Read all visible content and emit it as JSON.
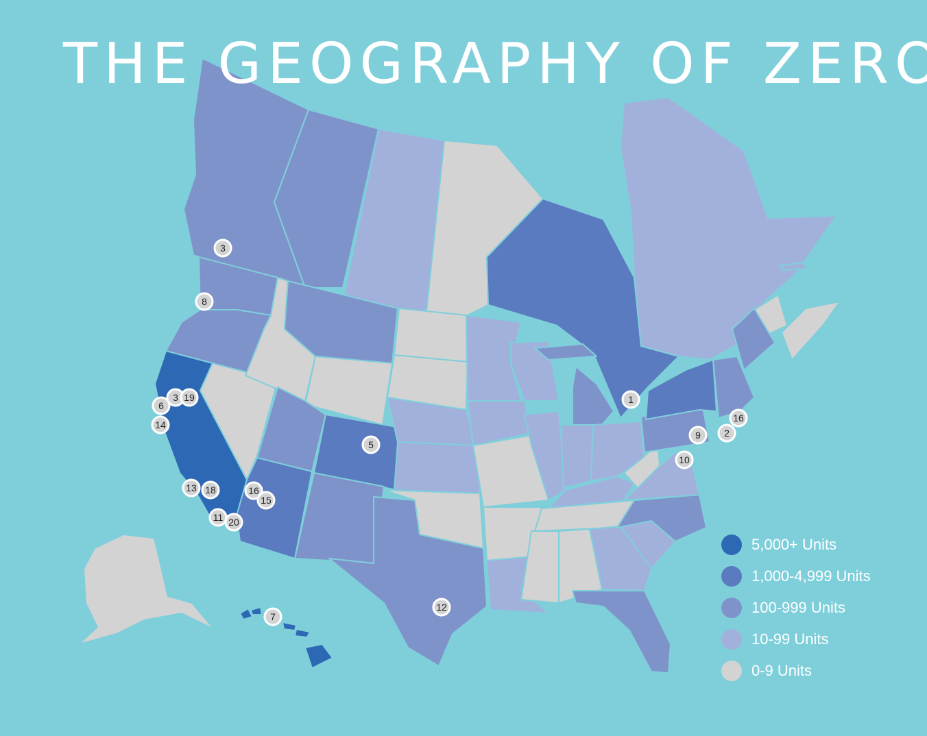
{
  "title": "THE GEOGRAPHY OF ZERO",
  "colors": {
    "background": "#7fcfdb",
    "tier_5000_plus": "#2d68b4",
    "tier_1000_4999": "#5a7bbf",
    "tier_100_999": "#7f93cb",
    "tier_10_99": "#a2b1dc",
    "tier_0_9": "#d3d3d3"
  },
  "legend": [
    {
      "label": "5,000+ Units",
      "color": "#2d68b4"
    },
    {
      "label": "1,000-4,999 Units",
      "color": "#5a7bbf"
    },
    {
      "label": "100-999 Units",
      "color": "#7f93cb"
    },
    {
      "label": "10-99 Units",
      "color": "#a2b1dc"
    },
    {
      "label": "0-9 Units",
      "color": "#d3d3d3"
    }
  ],
  "regions": [
    {
      "name": "british-columbia",
      "tier": 2
    },
    {
      "name": "alberta",
      "tier": 2
    },
    {
      "name": "saskatchewan",
      "tier": 3
    },
    {
      "name": "manitoba",
      "tier": 4
    },
    {
      "name": "ontario",
      "tier": 1
    },
    {
      "name": "quebec",
      "tier": 3
    },
    {
      "name": "new-brunswick",
      "tier": 4
    },
    {
      "name": "nova-scotia",
      "tier": 4
    },
    {
      "name": "washington",
      "tier": 2
    },
    {
      "name": "oregon",
      "tier": 2
    },
    {
      "name": "california",
      "tier": 0
    },
    {
      "name": "nevada",
      "tier": 4
    },
    {
      "name": "idaho",
      "tier": 4
    },
    {
      "name": "montana",
      "tier": 2
    },
    {
      "name": "wyoming",
      "tier": 4
    },
    {
      "name": "utah",
      "tier": 2
    },
    {
      "name": "arizona",
      "tier": 1
    },
    {
      "name": "colorado",
      "tier": 1
    },
    {
      "name": "new-mexico",
      "tier": 2
    },
    {
      "name": "north-dakota",
      "tier": 4
    },
    {
      "name": "south-dakota",
      "tier": 4
    },
    {
      "name": "nebraska",
      "tier": 3
    },
    {
      "name": "kansas",
      "tier": 3
    },
    {
      "name": "oklahoma",
      "tier": 4
    },
    {
      "name": "texas",
      "tier": 2
    },
    {
      "name": "minnesota",
      "tier": 3
    },
    {
      "name": "iowa",
      "tier": 3
    },
    {
      "name": "missouri",
      "tier": 4
    },
    {
      "name": "arkansas",
      "tier": 4
    },
    {
      "name": "louisiana",
      "tier": 3
    },
    {
      "name": "wisconsin",
      "tier": 3
    },
    {
      "name": "illinois",
      "tier": 3
    },
    {
      "name": "michigan",
      "tier": 2
    },
    {
      "name": "indiana",
      "tier": 3
    },
    {
      "name": "ohio",
      "tier": 3
    },
    {
      "name": "kentucky",
      "tier": 3
    },
    {
      "name": "tennessee",
      "tier": 4
    },
    {
      "name": "mississippi",
      "tier": 4
    },
    {
      "name": "alabama",
      "tier": 4
    },
    {
      "name": "georgia",
      "tier": 3
    },
    {
      "name": "florida",
      "tier": 2
    },
    {
      "name": "south-carolina",
      "tier": 3
    },
    {
      "name": "north-carolina",
      "tier": 2
    },
    {
      "name": "virginia",
      "tier": 3
    },
    {
      "name": "west-virginia",
      "tier": 4
    },
    {
      "name": "pennsylvania",
      "tier": 2
    },
    {
      "name": "new-york",
      "tier": 1
    },
    {
      "name": "new-england",
      "tier": 2
    },
    {
      "name": "maine",
      "tier": 2
    },
    {
      "name": "alaska",
      "tier": 4
    },
    {
      "name": "hawaii",
      "tier": 0
    }
  ],
  "markers": [
    {
      "label": "3"
    },
    {
      "label": "8"
    },
    {
      "label": "3"
    },
    {
      "label": "19"
    },
    {
      "label": "6"
    },
    {
      "label": "14"
    },
    {
      "label": "13"
    },
    {
      "label": "18"
    },
    {
      "label": "11"
    },
    {
      "label": "20"
    },
    {
      "label": "16"
    },
    {
      "label": "15"
    },
    {
      "label": "5"
    },
    {
      "label": "7"
    },
    {
      "label": "12"
    },
    {
      "label": "1"
    },
    {
      "label": "9"
    },
    {
      "label": "10"
    },
    {
      "label": "2"
    },
    {
      "label": "16"
    }
  ]
}
